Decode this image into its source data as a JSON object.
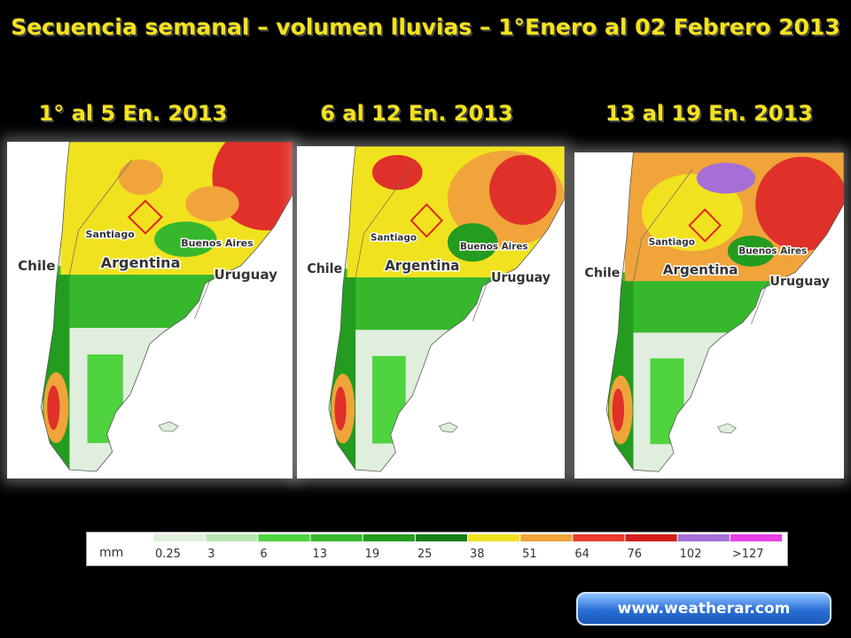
{
  "title": "Secuencia semanal – volumen lluvias – 1°Enero al 02 Febrero 2013",
  "panels": [
    {
      "title": "1° al 5 En. 2013",
      "labels": [
        "Chile",
        "Santiago",
        "Argentina",
        "Buenos Aires",
        "Uruguay"
      ]
    },
    {
      "title": "6 al 12 En. 2013",
      "labels": [
        "Chile",
        "Santiago",
        "Argentina",
        "Buenos Aires",
        "Uruguay"
      ]
    },
    {
      "title": "13 al 19 En. 2013",
      "labels": [
        "Chile",
        "Santiago",
        "Argentina",
        "Buenos Aires",
        "Uruguay"
      ]
    }
  ],
  "legend": {
    "unit": "mm",
    "items": [
      {
        "label": "0.25",
        "color": "#dfeedd"
      },
      {
        "label": "3",
        "color": "#b9e5b3"
      },
      {
        "label": "6",
        "color": "#4fd33f"
      },
      {
        "label": "13",
        "color": "#37b82c"
      },
      {
        "label": "19",
        "color": "#239c1f"
      },
      {
        "label": "25",
        "color": "#167f16"
      },
      {
        "label": "38",
        "color": "#f1e21f"
      },
      {
        "label": "51",
        "color": "#f0a43a"
      },
      {
        "label": "64",
        "color": "#ea3b2e"
      },
      {
        "label": "76",
        "color": "#d21f1a"
      },
      {
        "label": "102",
        "color": "#a66fd6"
      },
      {
        "label": ">127",
        "color": "#e640e6"
      }
    ]
  },
  "link": "www.weatherar.com"
}
